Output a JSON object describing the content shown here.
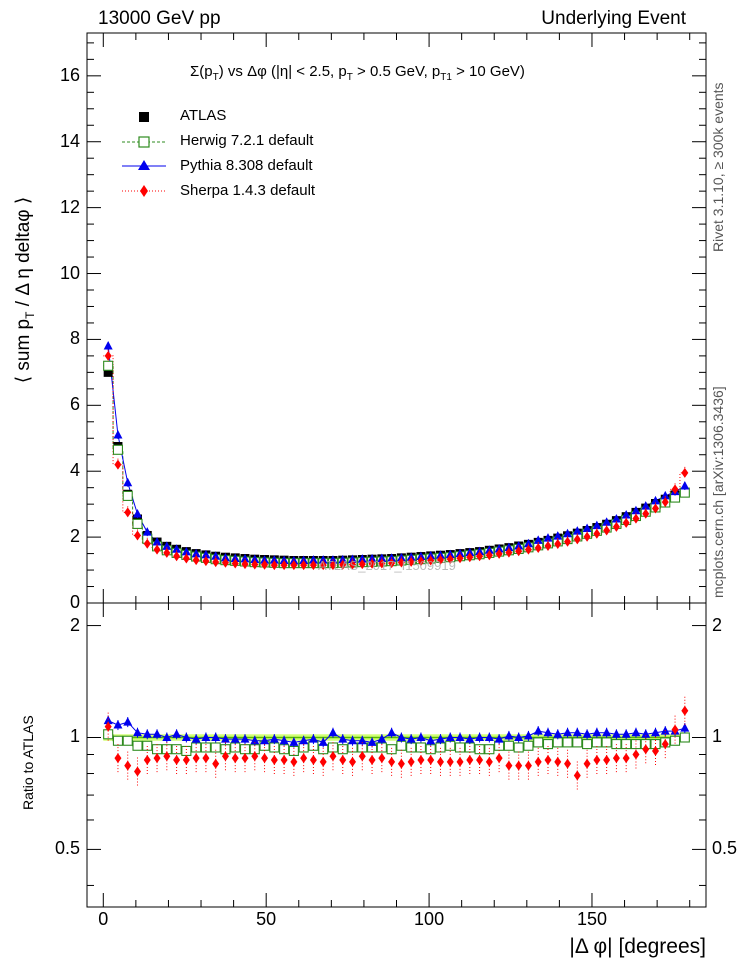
{
  "header": {
    "left": "13000 GeV pp",
    "right": "Underlying Event"
  },
  "side_labels": {
    "rivet": "Rivet 3.1.10, ≥ 300k events",
    "mcplots": "mcplots.cern.ch [arXiv:1306.3436]"
  },
  "watermark": "ATLAS_2017_I1509919",
  "colors": {
    "atlas": "#000000",
    "herwig": "#2e8b1f",
    "pythia": "#0000ee",
    "sherpa": "#ff0000",
    "band": "#ccff66",
    "band_line": "#55bb00"
  },
  "chart_data": {
    "type": "scatter",
    "title": "Σ(p_T) vs Δφ (|η| < 2.5, p_T > 0.5 GeV, p_T1 > 10 GeV)",
    "title_parts": {
      "p1": "Σ(p",
      "s1": "T",
      "p2": ") vs Δφ (|η| < 2.5, p",
      "s2": "T",
      "p3": " > 0.5 GeV, p",
      "s3": "T1",
      "p4": " > 10 GeV)"
    },
    "ylabel": "⟨ sum p_T / Δ η deltaφ ⟩",
    "ylabel_parts": {
      "a": "⟨ sum p",
      "sub": "T",
      "b": " / Δ η deltaφ ⟩"
    },
    "ratio_ylabel": "Ratio to ATLAS",
    "xlabel": "|Δ φ| [degrees]",
    "xlim": [
      -5,
      185
    ],
    "ylim": [
      0,
      17.3
    ],
    "ratio_ylim": [
      0.35,
      2.3
    ],
    "x_ticks": [
      0,
      50,
      100,
      150
    ],
    "x_tick_labels": [
      "0",
      "50",
      "100",
      "150"
    ],
    "y_ticks": [
      0,
      2,
      4,
      6,
      8,
      10,
      12,
      14,
      16
    ],
    "y_tick_labels": [
      "0",
      "2",
      "4",
      "6",
      "8",
      "10",
      "12",
      "14",
      "16"
    ],
    "ratio_ticks": [
      0.5,
      1,
      2
    ],
    "ratio_tick_labels": [
      "0.5",
      "1",
      "2"
    ],
    "legend": [
      "ATLAS",
      "Herwig 7.2.1 default",
      "Pythia 8.308 default",
      "Sherpa 1.4.3 default"
    ],
    "legend_position": "top-left",
    "x": [
      1.5,
      4.5,
      7.5,
      10.5,
      13.5,
      16.5,
      19.5,
      22.5,
      25.5,
      28.5,
      31.5,
      34.5,
      37.5,
      40.5,
      43.5,
      46.5,
      49.5,
      52.5,
      55.5,
      58.5,
      61.5,
      64.5,
      67.5,
      70.5,
      73.5,
      76.5,
      79.5,
      82.5,
      85.5,
      88.5,
      91.5,
      94.5,
      97.5,
      100.5,
      103.5,
      106.5,
      109.5,
      112.5,
      115.5,
      118.5,
      121.5,
      124.5,
      127.5,
      130.5,
      133.5,
      136.5,
      139.5,
      142.5,
      145.5,
      148.5,
      151.5,
      154.5,
      157.5,
      160.5,
      163.5,
      166.5,
      169.5,
      172.5,
      175.5,
      178.5
    ],
    "series": [
      {
        "name": "ATLAS",
        "values": [
          7.0,
          4.75,
          3.3,
          2.55,
          2.05,
          1.85,
          1.72,
          1.63,
          1.56,
          1.5,
          1.46,
          1.42,
          1.39,
          1.37,
          1.35,
          1.33,
          1.32,
          1.31,
          1.3,
          1.29,
          1.29,
          1.29,
          1.29,
          1.29,
          1.3,
          1.31,
          1.32,
          1.33,
          1.34,
          1.35,
          1.37,
          1.39,
          1.41,
          1.43,
          1.45,
          1.47,
          1.5,
          1.53,
          1.56,
          1.6,
          1.64,
          1.68,
          1.73,
          1.78,
          1.84,
          1.9,
          1.97,
          2.04,
          2.12,
          2.2,
          2.29,
          2.39,
          2.5,
          2.62,
          2.75,
          2.88,
          3.02,
          3.15,
          3.28,
          3.35
        ]
      },
      {
        "name": "Herwig 7.2.1 default",
        "values": [
          7.2,
          4.65,
          3.25,
          2.4,
          1.95,
          1.72,
          1.6,
          1.52,
          1.46,
          1.41,
          1.37,
          1.33,
          1.3,
          1.28,
          1.26,
          1.24,
          1.23,
          1.22,
          1.21,
          1.21,
          1.21,
          1.21,
          1.21,
          1.21,
          1.22,
          1.23,
          1.24,
          1.25,
          1.26,
          1.27,
          1.29,
          1.31,
          1.33,
          1.35,
          1.37,
          1.39,
          1.42,
          1.45,
          1.48,
          1.52,
          1.56,
          1.6,
          1.64,
          1.69,
          1.75,
          1.81,
          1.87,
          1.94,
          2.02,
          2.1,
          2.19,
          2.29,
          2.4,
          2.52,
          2.64,
          2.77,
          2.9,
          3.05,
          3.2,
          3.35
        ]
      },
      {
        "name": "Pythia 8.308 default",
        "values": [
          7.8,
          5.1,
          3.65,
          2.7,
          2.15,
          1.85,
          1.72,
          1.63,
          1.55,
          1.49,
          1.46,
          1.42,
          1.37,
          1.35,
          1.34,
          1.32,
          1.3,
          1.3,
          1.29,
          1.28,
          1.29,
          1.3,
          1.3,
          1.3,
          1.31,
          1.32,
          1.33,
          1.34,
          1.35,
          1.36,
          1.37,
          1.39,
          1.41,
          1.43,
          1.45,
          1.47,
          1.5,
          1.53,
          1.56,
          1.6,
          1.64,
          1.68,
          1.73,
          1.8,
          1.9,
          1.97,
          2.03,
          2.1,
          2.18,
          2.26,
          2.35,
          2.45,
          2.55,
          2.67,
          2.8,
          2.94,
          3.1,
          3.25,
          3.38,
          3.55
        ]
      },
      {
        "name": "Sherpa 1.4.3 default",
        "values": [
          7.5,
          4.2,
          2.75,
          2.05,
          1.8,
          1.62,
          1.52,
          1.42,
          1.35,
          1.3,
          1.27,
          1.24,
          1.22,
          1.2,
          1.18,
          1.17,
          1.16,
          1.15,
          1.15,
          1.15,
          1.15,
          1.15,
          1.15,
          1.15,
          1.16,
          1.17,
          1.18,
          1.19,
          1.2,
          1.21,
          1.23,
          1.25,
          1.27,
          1.29,
          1.31,
          1.33,
          1.36,
          1.39,
          1.42,
          1.45,
          1.49,
          1.53,
          1.57,
          1.62,
          1.67,
          1.73,
          1.79,
          1.86,
          1.93,
          2.01,
          2.1,
          2.2,
          2.31,
          2.43,
          2.56,
          2.71,
          2.87,
          3.06,
          3.45,
          3.95
        ]
      }
    ],
    "ratio_series": [
      {
        "name": "Herwig 7.2.1 default",
        "values": [
          1.02,
          0.98,
          0.98,
          0.95,
          0.95,
          0.93,
          0.93,
          0.93,
          0.92,
          0.94,
          0.94,
          0.94,
          0.93,
          0.94,
          0.93,
          0.93,
          0.95,
          0.94,
          0.93,
          0.92,
          0.94,
          0.95,
          0.93,
          0.94,
          0.93,
          0.94,
          0.94,
          0.94,
          0.94,
          0.93,
          0.95,
          0.94,
          0.94,
          0.93,
          0.94,
          0.95,
          0.94,
          0.94,
          0.93,
          0.93,
          0.95,
          0.95,
          0.94,
          0.95,
          0.97,
          0.96,
          0.97,
          0.97,
          0.97,
          0.96,
          0.97,
          0.97,
          0.96,
          0.96,
          0.96,
          0.96,
          0.96,
          0.97,
          0.98,
          1.0
        ]
      },
      {
        "name": "Pythia 8.308 default",
        "values": [
          1.11,
          1.08,
          1.1,
          1.03,
          1.02,
          1.02,
          1.0,
          1.02,
          1.0,
          0.99,
          1.0,
          1.0,
          0.99,
          0.99,
          0.99,
          0.98,
          0.98,
          0.99,
          0.98,
          0.97,
          0.98,
          0.99,
          0.97,
          1.03,
          0.99,
          0.98,
          0.98,
          0.97,
          0.99,
          1.03,
          1.0,
          0.99,
          1.0,
          0.98,
          0.99,
          1.0,
          1.0,
          0.99,
          1.0,
          1.0,
          0.99,
          1.01,
          1.0,
          1.01,
          1.04,
          1.03,
          1.02,
          1.03,
          1.03,
          1.02,
          1.03,
          1.03,
          1.02,
          1.02,
          1.03,
          1.02,
          1.03,
          1.04,
          1.04,
          1.06
        ]
      },
      {
        "name": "Sherpa 1.4.3 default",
        "values": [
          1.07,
          0.88,
          0.84,
          0.81,
          0.87,
          0.88,
          0.89,
          0.87,
          0.87,
          0.88,
          0.88,
          0.85,
          0.89,
          0.88,
          0.88,
          0.89,
          0.88,
          0.87,
          0.87,
          0.86,
          0.88,
          0.87,
          0.86,
          0.89,
          0.87,
          0.86,
          0.89,
          0.87,
          0.88,
          0.86,
          0.85,
          0.86,
          0.87,
          0.87,
          0.86,
          0.86,
          0.86,
          0.87,
          0.87,
          0.86,
          0.88,
          0.84,
          0.84,
          0.84,
          0.86,
          0.87,
          0.86,
          0.85,
          0.79,
          0.85,
          0.87,
          0.87,
          0.88,
          0.88,
          0.9,
          0.93,
          0.92,
          0.96,
          1.05,
          1.18
        ]
      }
    ]
  }
}
